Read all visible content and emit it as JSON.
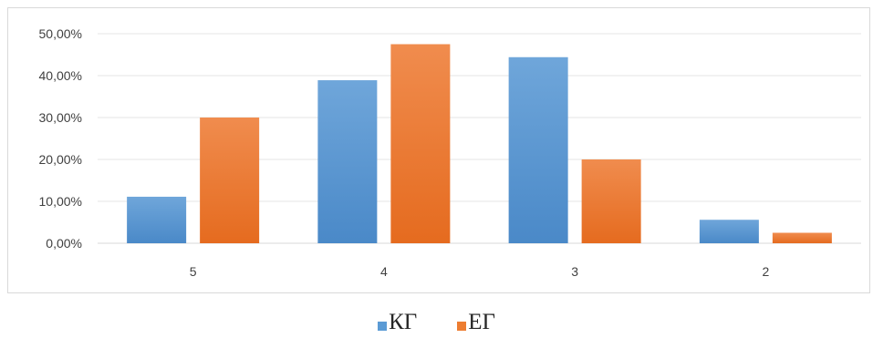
{
  "chart_data": {
    "type": "bar",
    "title": "",
    "xlabel": "",
    "ylabel": "",
    "categories": [
      "5",
      "4",
      "3",
      "2"
    ],
    "series": [
      {
        "name": "КГ",
        "values": [
          11.1,
          38.9,
          44.4,
          5.6
        ],
        "color": "#5b9bd5"
      },
      {
        "name": "ЕГ",
        "values": [
          30.0,
          47.5,
          20.0,
          2.5
        ],
        "color": "#ed7d31"
      }
    ],
    "ylim": [
      0,
      50
    ],
    "yticks": [
      "0,00%",
      "10,00%",
      "20,00%",
      "30,00%",
      "40,00%",
      "50,00%"
    ],
    "grid": true,
    "legend_position": "bottom"
  }
}
